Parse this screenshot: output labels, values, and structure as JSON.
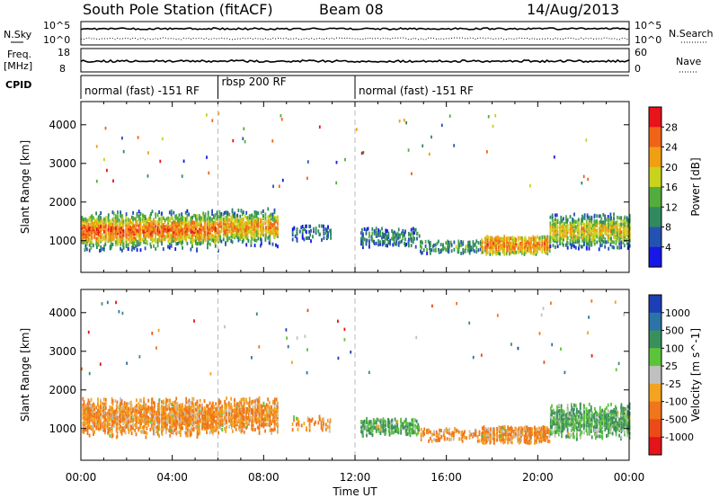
{
  "header": {
    "station": "South Pole Station (fitACF)",
    "beam": "Beam 08",
    "date": "14/Aug/2013"
  },
  "strip_labels": {
    "nsky": "N.Sky",
    "nsearch": "N.Search",
    "freq_line1": "Freq.",
    "freq_line2": "[MHz]",
    "nave": "Nave",
    "cpid": "CPID"
  },
  "strip_ticks": {
    "left_top": [
      "10^5",
      "10^0"
    ],
    "right_top": [
      "10^5",
      "10^0"
    ],
    "left_freq": [
      "18",
      "8"
    ],
    "right_nave": [
      "60",
      "0"
    ]
  },
  "cpid_segments": [
    {
      "label": "normal (fast) -151 RF",
      "start_h": 0,
      "end_h": 6
    },
    {
      "label": "rbsp 200 RF",
      "start_h": 6,
      "end_h": 12
    },
    {
      "label": "normal (fast) -151 RF",
      "start_h": 12,
      "end_h": 24
    }
  ],
  "chart_data": [
    {
      "type": "heatmap",
      "title": "Power",
      "xlabel": "",
      "ylabel": "Slant Range [km]",
      "x_ticks": [
        "00:00",
        "04:00",
        "08:00",
        "12:00",
        "16:00",
        "20:00",
        "00:00"
      ],
      "xlim": [
        0,
        24
      ],
      "ylim": [
        180,
        4600
      ],
      "y_ticks": [
        1000,
        2000,
        3000,
        4000
      ],
      "colorbar": {
        "label": "Power [dB]",
        "ticks": [
          4,
          8,
          12,
          16,
          20,
          24,
          28
        ],
        "range": [
          0,
          32
        ],
        "colors": [
          "#1717e6",
          "#2452b2",
          "#2f8a5f",
          "#53ad3c",
          "#c9d21c",
          "#f29e15",
          "#ef6418",
          "#e8131b"
        ]
      },
      "scatter_regions": [
        {
          "start_h": 0.0,
          "end_h": 2.4,
          "center_km": 1260,
          "halfwidth_km": 330,
          "extent_km": 1000,
          "density": 0.85,
          "level_dB": 26
        },
        {
          "start_h": 2.4,
          "end_h": 6.0,
          "center_km": 1280,
          "halfwidth_km": 320,
          "extent_km": 1050,
          "density": 0.85,
          "level_dB": 25
        },
        {
          "start_h": 6.0,
          "end_h": 8.6,
          "center_km": 1350,
          "halfwidth_km": 300,
          "extent_km": 1000,
          "density": 0.8,
          "level_dB": 23
        },
        {
          "start_h": 9.2,
          "end_h": 10.9,
          "center_km": 1200,
          "halfwidth_km": 260,
          "extent_km": 400,
          "density": 0.25,
          "level_dB": 8
        },
        {
          "start_h": 12.2,
          "end_h": 14.8,
          "center_km": 1100,
          "halfwidth_km": 220,
          "extent_km": 500,
          "density": 0.45,
          "level_dB": 10
        },
        {
          "start_h": 14.8,
          "end_h": 17.5,
          "center_km": 850,
          "halfwidth_km": 220,
          "extent_km": 300,
          "density": 0.35,
          "level_dB": 12
        },
        {
          "start_h": 17.5,
          "end_h": 20.5,
          "center_km": 900,
          "halfwidth_km": 280,
          "extent_km": 450,
          "density": 0.8,
          "level_dB": 24
        },
        {
          "start_h": 20.5,
          "end_h": 24.0,
          "center_km": 1250,
          "halfwidth_km": 300,
          "extent_km": 900,
          "density": 0.8,
          "level_dB": 20
        }
      ]
    },
    {
      "type": "heatmap",
      "title": "Velocity",
      "xlabel": "Time UT",
      "ylabel": "Slant Range [km]",
      "x_ticks": [
        "00:00",
        "04:00",
        "08:00",
        "12:00",
        "16:00",
        "20:00",
        "00:00"
      ],
      "xlim": [
        0,
        24
      ],
      "ylim": [
        180,
        4600
      ],
      "y_ticks": [
        1000,
        2000,
        3000,
        4000
      ],
      "colorbar": {
        "label": "Velocity [m s^-1]",
        "ticks": [
          "1000",
          "500",
          "100",
          "25",
          "-25",
          "-100",
          "-500",
          "-1000"
        ],
        "colors": [
          "#1d3fb5",
          "#2a74a8",
          "#3b8f5c",
          "#5cc43a",
          "#c0c0c0",
          "#f3a31f",
          "#f0751b",
          "#ec4a17",
          "#e3141a"
        ]
      },
      "scatter_regions": [
        {
          "start_h": 0.0,
          "end_h": 2.4,
          "center_km": 1300,
          "halfwidth_km": 330,
          "extent_km": 1000,
          "density": 0.85,
          "level_ms": -100
        },
        {
          "start_h": 2.4,
          "end_h": 6.0,
          "center_km": 1300,
          "halfwidth_km": 320,
          "extent_km": 1000,
          "density": 0.85,
          "level_ms": -100
        },
        {
          "start_h": 6.0,
          "end_h": 8.6,
          "center_km": 1350,
          "halfwidth_km": 300,
          "extent_km": 900,
          "density": 0.8,
          "level_ms": -100
        },
        {
          "start_h": 9.2,
          "end_h": 10.9,
          "center_km": 1150,
          "halfwidth_km": 240,
          "extent_km": 400,
          "density": 0.25,
          "level_ms": -100
        },
        {
          "start_h": 12.2,
          "end_h": 14.8,
          "center_km": 1050,
          "halfwidth_km": 240,
          "extent_km": 450,
          "density": 0.5,
          "level_ms": 100
        },
        {
          "start_h": 14.8,
          "end_h": 17.5,
          "center_km": 850,
          "halfwidth_km": 230,
          "extent_km": 300,
          "density": 0.4,
          "level_ms": -100
        },
        {
          "start_h": 17.5,
          "end_h": 20.5,
          "center_km": 850,
          "halfwidth_km": 260,
          "extent_km": 400,
          "density": 0.75,
          "level_ms": -100
        },
        {
          "start_h": 20.5,
          "end_h": 24.0,
          "center_km": 1200,
          "halfwidth_km": 300,
          "extent_km": 900,
          "density": 0.8,
          "level_ms": 100
        }
      ]
    }
  ]
}
